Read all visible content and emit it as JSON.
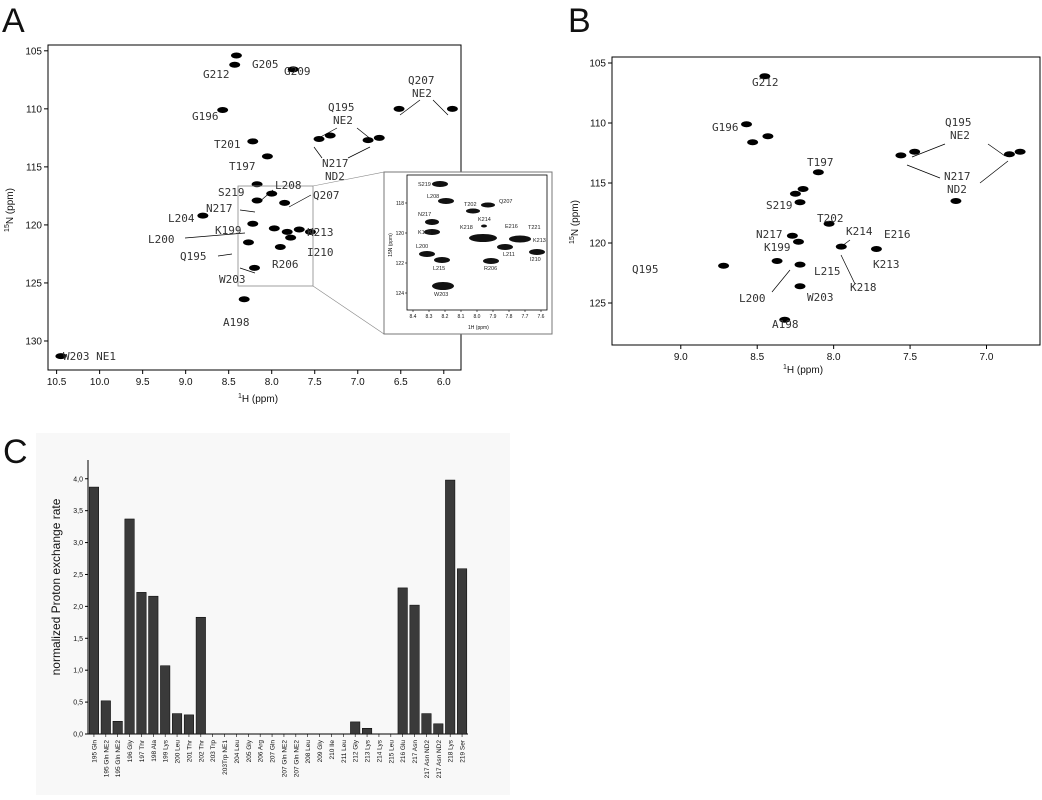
{
  "panel_letters": {
    "a": "A",
    "b": "B",
    "c": "C"
  },
  "chart_data": [
    {
      "panel": "A",
      "type": "scatter",
      "xlabel": "1H (ppm)",
      "ylabel": "15N (ppm)",
      "xlim": [
        10.6,
        5.8
      ],
      "ylim": [
        104.5,
        132.5
      ],
      "x_ticks": [
        "10.5",
        "10.0",
        "9.5",
        "9.0",
        "8.5",
        "8.0",
        "7.5",
        "7.0",
        "6.5",
        "6.0"
      ],
      "y_ticks": [
        "105",
        "110",
        "115",
        "120",
        "125",
        "130"
      ],
      "peaks": [
        {
          "x": 8.41,
          "y": 105.4
        },
        {
          "x": 8.43,
          "y": 106.2
        },
        {
          "x": 7.75,
          "y": 106.6
        },
        {
          "x": 8.57,
          "y": 110.1
        },
        {
          "x": 8.22,
          "y": 112.8
        },
        {
          "x": 8.05,
          "y": 114.1
        },
        {
          "x": 7.45,
          "y": 112.6
        },
        {
          "x": 7.32,
          "y": 112.3
        },
        {
          "x": 6.88,
          "y": 112.7
        },
        {
          "x": 6.75,
          "y": 112.5
        },
        {
          "x": 6.52,
          "y": 110.0
        },
        {
          "x": 5.9,
          "y": 110.0
        },
        {
          "x": 8.17,
          "y": 116.5
        },
        {
          "x": 8.17,
          "y": 117.9
        },
        {
          "x": 8.0,
          "y": 117.3
        },
        {
          "x": 7.85,
          "y": 118.1
        },
        {
          "x": 8.8,
          "y": 119.2
        },
        {
          "x": 8.22,
          "y": 119.9
        },
        {
          "x": 7.97,
          "y": 120.3
        },
        {
          "x": 7.82,
          "y": 120.6
        },
        {
          "x": 7.68,
          "y": 120.4
        },
        {
          "x": 8.27,
          "y": 121.5
        },
        {
          "x": 7.9,
          "y": 121.9
        },
        {
          "x": 7.78,
          "y": 121.1
        },
        {
          "x": 7.55,
          "y": 120.6
        },
        {
          "x": 8.2,
          "y": 123.7
        },
        {
          "x": 8.32,
          "y": 126.4
        },
        {
          "x": 10.45,
          "y": 131.3
        }
      ],
      "labels": [
        "G205",
        "G212",
        "G209",
        "Q207",
        "NE2",
        "G196",
        "Q195",
        "NE2",
        "T201",
        "N217",
        "ND2",
        "T197",
        "L208",
        "S219",
        "Q207",
        "N217",
        "L204",
        "K199",
        "K213",
        "L200",
        "I210",
        "R206",
        "Q195",
        "W203",
        "A198",
        "W203 NE1"
      ],
      "inset": {
        "x_ticks": [
          "8.4",
          "8.3",
          "8.2",
          "8.1",
          "8.0",
          "7.9",
          "7.8",
          "7.7",
          "7.6"
        ],
        "y_ticks": [
          "118",
          "120",
          "122",
          "124"
        ],
        "xlabel": "1H (ppm)",
        "ylabel": "15N (ppm)",
        "labels": [
          "S219",
          "L208",
          "T202",
          "Q207",
          "N217",
          "K214",
          "K218",
          "E216",
          "T221",
          "K199",
          "K213",
          "L200",
          "L211",
          "I210",
          "L215",
          "R206",
          "W203"
        ]
      }
    },
    {
      "panel": "B",
      "type": "scatter",
      "xlabel": "1H (ppm)",
      "ylabel": "15N (ppm)",
      "xlim": [
        9.45,
        6.65
      ],
      "ylim": [
        104.5,
        128.5
      ],
      "x_ticks": [
        "9.0",
        "8.5",
        "8.0",
        "7.5",
        "7.0"
      ],
      "y_ticks": [
        "105",
        "110",
        "115",
        "120",
        "125"
      ],
      "peaks": [
        {
          "x": 8.45,
          "y": 106.1
        },
        {
          "x": 8.57,
          "y": 110.1
        },
        {
          "x": 8.43,
          "y": 111.1
        },
        {
          "x": 8.53,
          "y": 111.6
        },
        {
          "x": 8.1,
          "y": 114.1
        },
        {
          "x": 8.2,
          "y": 115.5
        },
        {
          "x": 8.25,
          "y": 115.9
        },
        {
          "x": 8.22,
          "y": 116.6
        },
        {
          "x": 7.56,
          "y": 112.7
        },
        {
          "x": 7.47,
          "y": 112.4
        },
        {
          "x": 6.85,
          "y": 112.6
        },
        {
          "x": 6.78,
          "y": 112.4
        },
        {
          "x": 7.2,
          "y": 116.5
        },
        {
          "x": 8.03,
          "y": 118.4
        },
        {
          "x": 8.27,
          "y": 119.4
        },
        {
          "x": 8.23,
          "y": 119.9
        },
        {
          "x": 7.95,
          "y": 120.3
        },
        {
          "x": 7.72,
          "y": 120.5
        },
        {
          "x": 8.72,
          "y": 121.9
        },
        {
          "x": 8.37,
          "y": 121.5
        },
        {
          "x": 8.22,
          "y": 121.8
        },
        {
          "x": 8.22,
          "y": 123.6
        },
        {
          "x": 8.32,
          "y": 126.4
        }
      ],
      "labels": [
        "G212",
        "G196",
        "Q195",
        "NE2",
        "T197",
        "N217",
        "ND2",
        "S219",
        "T202",
        "K214",
        "E216",
        "N217",
        "K199",
        "L215",
        "K213",
        "Q195",
        "K218",
        "L200",
        "W203",
        "A198"
      ]
    },
    {
      "panel": "C",
      "type": "bar",
      "ylabel": "normalized Proton exchange rate",
      "ylim": [
        0,
        4.2
      ],
      "y_ticks": [
        "0,0",
        "0,5",
        "1,0",
        "1,5",
        "2,0",
        "2,5",
        "3,0",
        "3,5",
        "4,0"
      ],
      "categories": [
        "195 Gln",
        "195 Gln NE2",
        "195 Gln NE2",
        "196 Gly",
        "197 Thr",
        "198 Ala",
        "199 Lys",
        "200 Leu",
        "201 Thr",
        "202 Thr",
        "203 Trp",
        "203Trp NE1",
        "204 Leu",
        "205 Gly",
        "206 Arg",
        "207 Gln",
        "207 Gln NE2",
        "207 Gln NE2",
        "208 Leu",
        "209 Gly",
        "210 Ile",
        "211 Leu",
        "212 Gly",
        "213 Lys",
        "214 Lys",
        "215 Leu",
        "216 Glu",
        "217 Asn",
        "217 Asn ND2",
        "217 Asn ND2",
        "218 Lys",
        "219 Ser"
      ],
      "values": [
        3.87,
        0.52,
        0.2,
        3.37,
        2.22,
        2.16,
        1.07,
        0.32,
        0.3,
        1.83,
        0,
        0,
        0,
        0,
        0,
        0,
        0,
        0,
        0,
        0,
        0,
        0,
        0.19,
        0.09,
        0,
        0,
        2.29,
        2.02,
        0.32,
        0.16,
        3.98,
        2.59
      ]
    }
  ]
}
